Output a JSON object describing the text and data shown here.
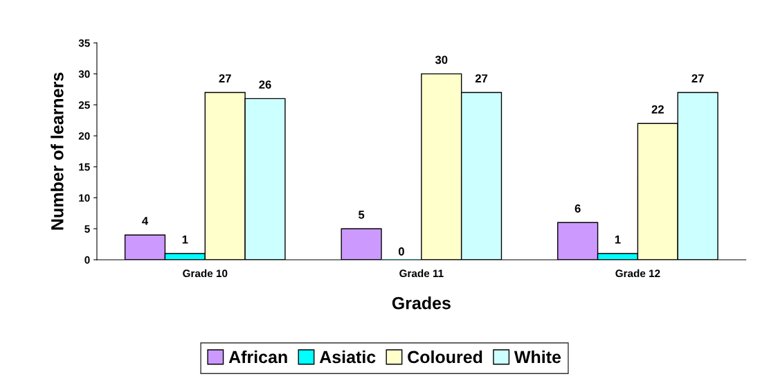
{
  "chart_data": {
    "type": "bar",
    "xlabel": "Grades",
    "ylabel": "Number of learners",
    "categories": [
      "Grade 10",
      "Grade 11",
      "Grade 12"
    ],
    "series": [
      {
        "name": "African",
        "color": "#cc99ff",
        "values": [
          4,
          5,
          6
        ]
      },
      {
        "name": "Asiatic",
        "color": "#00ffff",
        "values": [
          1,
          0,
          1
        ]
      },
      {
        "name": "Coloured",
        "color": "#ffffcc",
        "values": [
          27,
          30,
          22
        ]
      },
      {
        "name": "White",
        "color": "#ccffff",
        "values": [
          26,
          27,
          27
        ]
      }
    ],
    "ylim": [
      0,
      35
    ],
    "yticks": [
      0,
      5,
      10,
      15,
      20,
      25,
      30,
      35
    ],
    "data_labels": true,
    "grid": false,
    "legend": "bottom"
  }
}
